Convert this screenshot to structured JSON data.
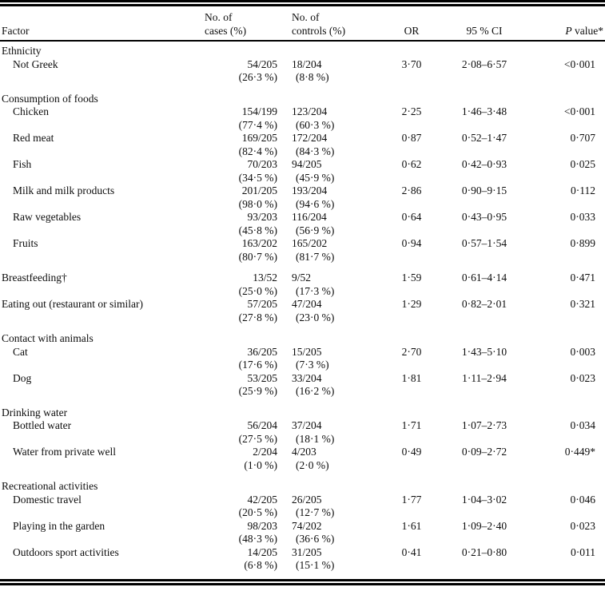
{
  "table": {
    "header": {
      "factor": "Factor",
      "cases_line1": "No. of",
      "cases_line2": "cases (%)",
      "controls_line1": "No. of",
      "controls_line2": "controls (%)",
      "or": "OR",
      "ci": "95 % CI",
      "p_italic": "P",
      "p_rest": " value*"
    },
    "rows": [
      {
        "type": "section",
        "gap": false,
        "factor": "Ethnicity"
      },
      {
        "type": "item",
        "indent": true,
        "gap": false,
        "factor": "Not Greek",
        "cases": "54/205",
        "cases_pct": "(26·3 %)",
        "controls": "18/204",
        "controls_pct": "(8·8 %)",
        "or": "3·70",
        "ci": "2·08–6·57",
        "p": "<0·001"
      },
      {
        "type": "section",
        "gap": true,
        "factor": "Consumption of foods"
      },
      {
        "type": "item",
        "indent": true,
        "gap": false,
        "factor": "Chicken",
        "cases": "154/199",
        "cases_pct": "(77·4 %)",
        "controls": "123/204",
        "controls_pct": "(60·3 %)",
        "or": "2·25",
        "ci": "1·46–3·48",
        "p": "<0·001"
      },
      {
        "type": "item",
        "indent": true,
        "gap": false,
        "factor": "Red meat",
        "cases": "169/205",
        "cases_pct": "(82·4 %)",
        "controls": "172/204",
        "controls_pct": "(84·3 %)",
        "or": "0·87",
        "ci": "0·52–1·47",
        "p": "0·707"
      },
      {
        "type": "item",
        "indent": true,
        "gap": false,
        "factor": "Fish",
        "cases": "70/203",
        "cases_pct": "(34·5 %)",
        "controls": "94/205",
        "controls_pct": "(45·9 %)",
        "or": "0·62",
        "ci": "0·42–0·93",
        "p": "0·025"
      },
      {
        "type": "item",
        "indent": true,
        "gap": false,
        "factor": "Milk and milk products",
        "cases": "201/205",
        "cases_pct": "(98·0 %)",
        "controls": "193/204",
        "controls_pct": "(94·6 %)",
        "or": "2·86",
        "ci": "0·90–9·15",
        "p": "0·112"
      },
      {
        "type": "item",
        "indent": true,
        "gap": false,
        "factor": "Raw vegetables",
        "cases": "93/203",
        "cases_pct": "(45·8 %)",
        "controls": "116/204",
        "controls_pct": "(56·9 %)",
        "or": "0·64",
        "ci": "0·43–0·95",
        "p": "0·033"
      },
      {
        "type": "item",
        "indent": true,
        "gap": false,
        "factor": "Fruits",
        "cases": "163/202",
        "cases_pct": "(80·7 %)",
        "controls": "165/202",
        "controls_pct": "(81·7 %)",
        "or": "0·94",
        "ci": "0·57–1·54",
        "p": "0·899"
      },
      {
        "type": "item",
        "indent": false,
        "gap": true,
        "factor": "Breastfeeding†",
        "cases": "13/52",
        "cases_pct": "(25·0 %)",
        "controls": "9/52",
        "controls_pct": "(17·3 %)",
        "or": "1·59",
        "ci": "0·61–4·14",
        "p": "0·471"
      },
      {
        "type": "item",
        "indent": false,
        "gap": false,
        "factor": "Eating out (restaurant or similar)",
        "cases": "57/205",
        "cases_pct": "(27·8 %)",
        "controls": "47/204",
        "controls_pct": "(23·0 %)",
        "or": "1·29",
        "ci": "0·82–2·01",
        "p": "0·321"
      },
      {
        "type": "section",
        "gap": true,
        "factor": "Contact with animals"
      },
      {
        "type": "item",
        "indent": true,
        "gap": false,
        "factor": "Cat",
        "cases": "36/205",
        "cases_pct": "(17·6 %)",
        "controls": "15/205",
        "controls_pct": "(7·3 %)",
        "or": "2·70",
        "ci": "1·43–5·10",
        "p": "0·003"
      },
      {
        "type": "item",
        "indent": true,
        "gap": false,
        "factor": "Dog",
        "cases": "53/205",
        "cases_pct": "(25·9 %)",
        "controls": "33/204",
        "controls_pct": "(16·2 %)",
        "or": "1·81",
        "ci": "1·11–2·94",
        "p": "0·023"
      },
      {
        "type": "section",
        "gap": true,
        "factor": "Drinking water"
      },
      {
        "type": "item",
        "indent": true,
        "gap": false,
        "factor": "Bottled water",
        "cases": "56/204",
        "cases_pct": "(27·5 %)",
        "controls": "37/204",
        "controls_pct": "(18·1 %)",
        "or": "1·71",
        "ci": "1·07–2·73",
        "p": "0·034"
      },
      {
        "type": "item",
        "indent": true,
        "gap": false,
        "factor": "Water from private well",
        "cases": "2/204",
        "cases_pct": "(1·0 %)",
        "controls": "4/203",
        "controls_pct": "(2·0 %)",
        "or": "0·49",
        "ci": "0·09–2·72",
        "p": "0·449*"
      },
      {
        "type": "section",
        "gap": true,
        "factor": "Recreational activities"
      },
      {
        "type": "item",
        "indent": true,
        "gap": false,
        "factor": "Domestic travel",
        "cases": "42/205",
        "cases_pct": "(20·5 %)",
        "controls": "26/205",
        "controls_pct": "(12·7 %)",
        "or": "1·77",
        "ci": "1·04–3·02",
        "p": "0·046"
      },
      {
        "type": "item",
        "indent": true,
        "gap": false,
        "factor": "Playing in the garden",
        "cases": "98/203",
        "cases_pct": "(48·3 %)",
        "controls": "74/202",
        "controls_pct": "(36·6 %)",
        "or": "1·61",
        "ci": "1·09–2·40",
        "p": "0·023"
      },
      {
        "type": "item",
        "indent": true,
        "gap": false,
        "factor": "Outdoors sport activities",
        "cases": "14/205",
        "cases_pct": "(6·8 %)",
        "controls": "31/205",
        "controls_pct": "(15·1 %)",
        "or": "0·41",
        "ci": "0·21–0·80",
        "p": "0·011"
      }
    ]
  }
}
